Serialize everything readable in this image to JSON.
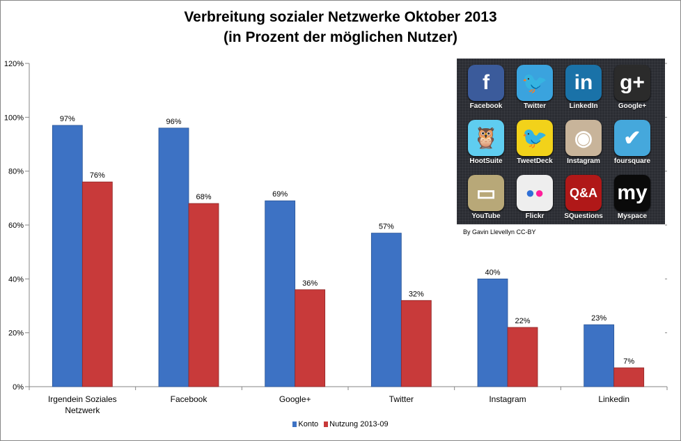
{
  "chart_data": {
    "type": "bar",
    "title": "Verbreitung sozialer Netzwerke Oktober 2013",
    "subtitle": "(in Prozent der möglichen Nutzer)",
    "categories": [
      "Irgendein Soziales Netzwerk",
      "Facebook",
      "Google+",
      "Twitter",
      "Instagram",
      "Linkedin"
    ],
    "category_lines": [
      [
        "Irgendein Soziales",
        "Netzwerk"
      ],
      [
        "Facebook"
      ],
      [
        "Google+"
      ],
      [
        "Twitter"
      ],
      [
        "Instagram"
      ],
      [
        "Linkedin"
      ]
    ],
    "series": [
      {
        "name": "Konto",
        "color": "#3d72c4",
        "values": [
          97,
          96,
          69,
          57,
          40,
          23
        ]
      },
      {
        "name": "Nutzung 2013-09",
        "color": "#c83a3a",
        "values": [
          76,
          68,
          36,
          32,
          22,
          7
        ]
      }
    ],
    "ylim": [
      0,
      120
    ],
    "yticks": [
      0,
      20,
      40,
      60,
      80,
      100,
      120
    ],
    "ytick_labels": [
      "0%",
      "20%",
      "40%",
      "60%",
      "80%",
      "100%",
      "120%"
    ],
    "xlabel": "",
    "ylabel": "",
    "grid": false,
    "legend_position": "bottom"
  },
  "inset": {
    "apps": [
      {
        "label": "Facebook",
        "glyph": "f",
        "bg": "#3b5b9b"
      },
      {
        "label": "Twitter",
        "glyph": "🐦",
        "bg": "#3aa3de"
      },
      {
        "label": "LinkedIn",
        "glyph": "in",
        "bg": "#1a72a8"
      },
      {
        "label": "Google+",
        "glyph": "g+",
        "bg": "#2b2b2b"
      },
      {
        "label": "HootSuite",
        "glyph": "🦉",
        "bg": "#5fcdf0"
      },
      {
        "label": "TweetDeck",
        "glyph": "🐦",
        "bg": "#f2d21a"
      },
      {
        "label": "Instagram",
        "glyph": "◉",
        "bg": "#c8b49a"
      },
      {
        "label": "foursquare",
        "glyph": "✔",
        "bg": "#45a8dc"
      },
      {
        "label": "YouTube",
        "glyph": "▭",
        "bg": "#b8a878"
      },
      {
        "label": "Flickr",
        "glyph": "●●",
        "bg": "#eeeeee"
      },
      {
        "label": "SQuestions",
        "glyph": "Q&A",
        "bg": "#b01818"
      },
      {
        "label": "Myspace",
        "glyph": "my",
        "bg": "#0a0a0a"
      }
    ],
    "credit": "By Gavin Llevellyn CC-BY"
  }
}
